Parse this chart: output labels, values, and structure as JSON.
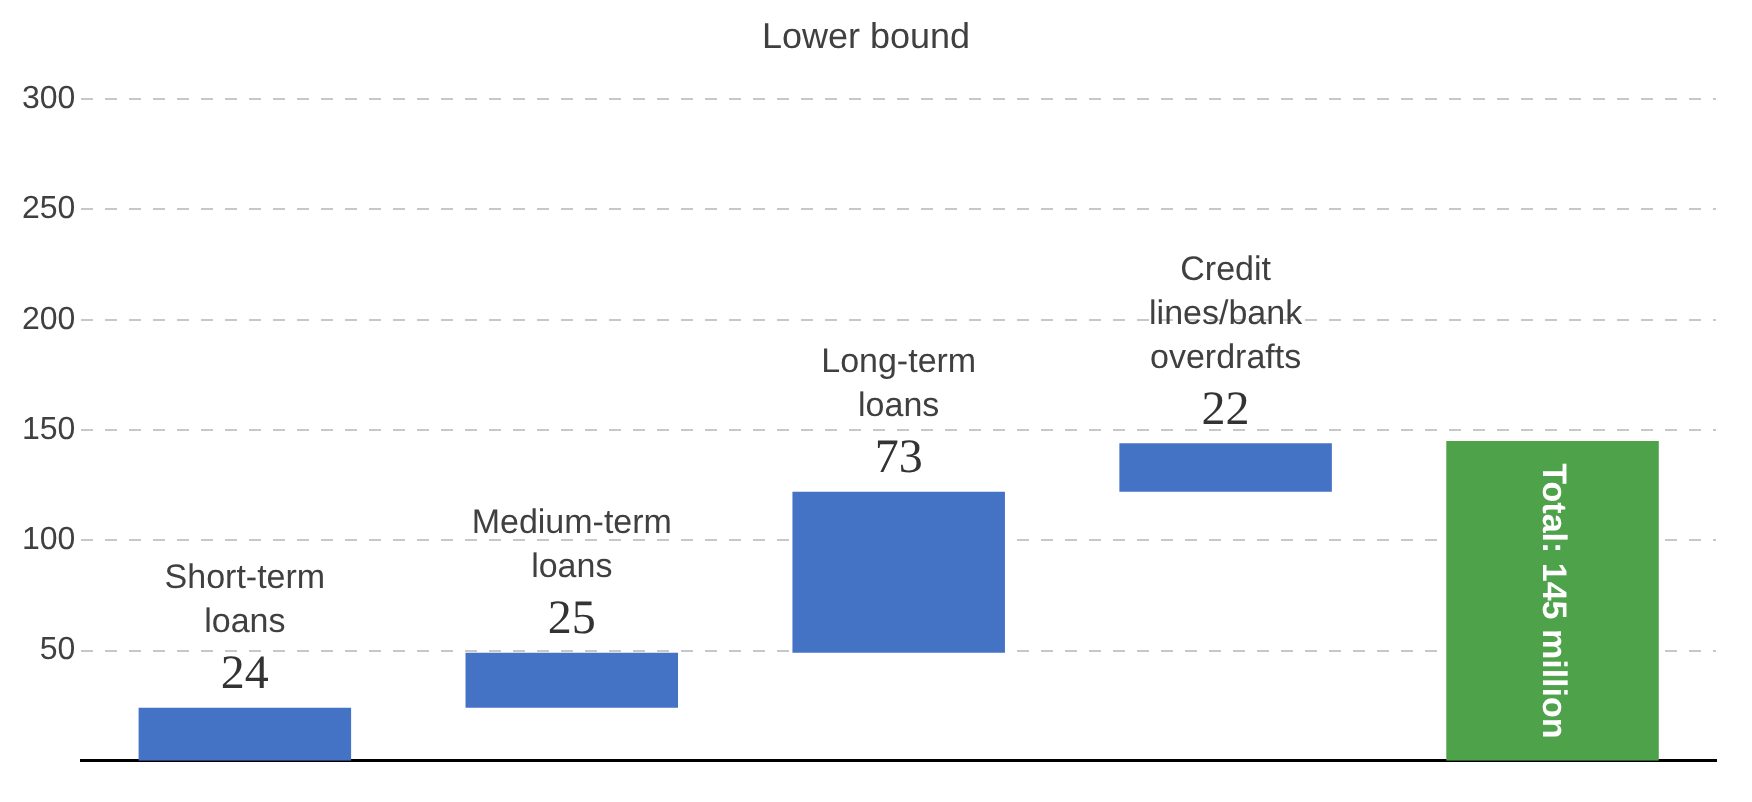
{
  "chart_data": {
    "type": "bar",
    "title": "Lower bound",
    "categories": [
      "Short-term loans",
      "Medium-term loans",
      "Long-term loans",
      "Credit lines/bank overdrafts",
      null
    ],
    "values": [
      24,
      25,
      73,
      22,
      145
    ],
    "base": [
      0,
      24,
      49,
      122,
      0
    ],
    "colors": [
      "#4472c4",
      "#4472c4",
      "#4472c4",
      "#4472c4",
      "#4ea24a"
    ],
    "value_labels": [
      "24",
      "25",
      "73",
      "22",
      "Total: 145 million"
    ],
    "ylim": [
      0,
      300
    ],
    "yticks": [
      50,
      100,
      150,
      200,
      250,
      300
    ],
    "grid": "y",
    "legend": false
  }
}
